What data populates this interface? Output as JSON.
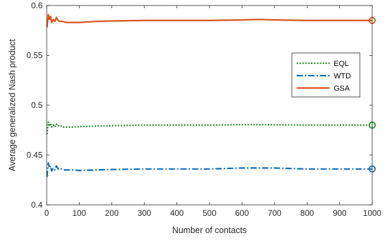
{
  "chart_data": {
    "type": "line",
    "title": "",
    "xlabel": "Number of contacts",
    "ylabel": "Average generalized Nash product",
    "xlim": [
      0,
      1000
    ],
    "ylim": [
      0.4,
      0.6
    ],
    "xticks": [
      0,
      100,
      200,
      300,
      400,
      500,
      600,
      700,
      800,
      900,
      1000
    ],
    "yticks": [
      0.4,
      0.45,
      0.5,
      0.55,
      0.6
    ],
    "xtick_labels": [
      "0",
      "100",
      "200",
      "300",
      "400",
      "500",
      "600",
      "700",
      "800",
      "900",
      "1000"
    ],
    "ytick_labels": [
      "0.4",
      "0.45",
      "0.5",
      "0.55",
      "0.6"
    ],
    "grid": false,
    "legend_position": "right, upper-middle",
    "series": [
      {
        "name": "EQL",
        "color": "#1e8c1e",
        "style": "dotted",
        "end_marker": "circle",
        "x": [
          1,
          3,
          5,
          8,
          12,
          15,
          20,
          25,
          30,
          35,
          40,
          50,
          60,
          80,
          100,
          150,
          200,
          300,
          400,
          500,
          600,
          700,
          800,
          900,
          1000
        ],
        "y": [
          0.471,
          0.477,
          0.483,
          0.479,
          0.482,
          0.478,
          0.48,
          0.478,
          0.481,
          0.479,
          0.48,
          0.478,
          0.478,
          0.478,
          0.4785,
          0.479,
          0.4795,
          0.48,
          0.48,
          0.48,
          0.4805,
          0.4805,
          0.48,
          0.48,
          0.48
        ]
      },
      {
        "name": "WTD",
        "color": "#0f6fbf",
        "style": "dashdot",
        "end_marker": "circle",
        "x": [
          1,
          3,
          5,
          8,
          12,
          15,
          20,
          25,
          30,
          35,
          40,
          50,
          60,
          80,
          100,
          150,
          200,
          300,
          400,
          500,
          600,
          700,
          800,
          900,
          1000
        ],
        "y": [
          0.428,
          0.436,
          0.442,
          0.437,
          0.439,
          0.434,
          0.437,
          0.435,
          0.439,
          0.436,
          0.437,
          0.435,
          0.435,
          0.435,
          0.4345,
          0.435,
          0.4355,
          0.436,
          0.436,
          0.436,
          0.437,
          0.437,
          0.436,
          0.436,
          0.436
        ]
      },
      {
        "name": "GSA",
        "color": "#d95319",
        "style": "solid",
        "end_marker": "circle",
        "x": [
          1,
          3,
          5,
          8,
          12,
          15,
          20,
          25,
          30,
          35,
          40,
          50,
          60,
          80,
          100,
          150,
          200,
          300,
          400,
          500,
          600,
          650,
          700,
          800,
          900,
          1000
        ],
        "y": [
          0.578,
          0.585,
          0.591,
          0.586,
          0.589,
          0.583,
          0.586,
          0.584,
          0.588,
          0.585,
          0.584,
          0.584,
          0.583,
          0.583,
          0.583,
          0.584,
          0.5845,
          0.585,
          0.585,
          0.585,
          0.5855,
          0.586,
          0.5855,
          0.585,
          0.585,
          0.585
        ]
      }
    ]
  }
}
